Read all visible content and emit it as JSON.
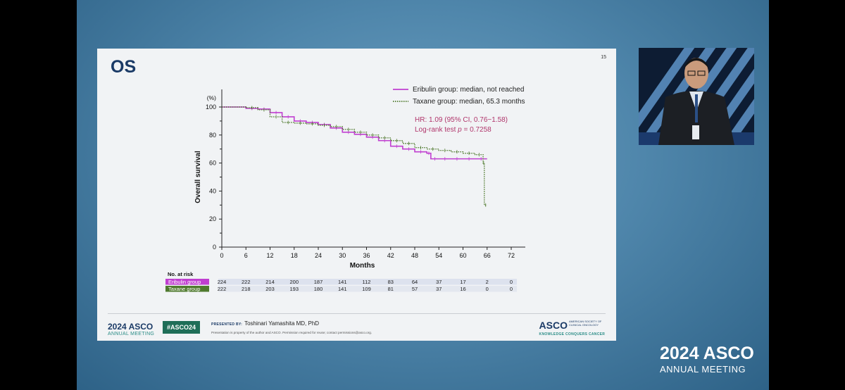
{
  "slide": {
    "number": "15",
    "title": "OS"
  },
  "chart_data": {
    "type": "line",
    "title": "OS",
    "ylabel": "Overall survival",
    "y_unit": "(%)",
    "xlabel": "Months",
    "xlim": [
      0,
      72
    ],
    "ylim": [
      0,
      100
    ],
    "x_ticks": [
      0,
      6,
      12,
      18,
      24,
      30,
      36,
      42,
      48,
      54,
      60,
      66,
      72
    ],
    "y_ticks": [
      0,
      20,
      40,
      60,
      80,
      100
    ],
    "series": [
      {
        "name": "Eribulin group: median, not reached",
        "color": "#c03fd0",
        "style": "solid",
        "x": [
          0,
          6,
          9,
          12,
          15,
          18,
          21,
          24,
          27,
          30,
          33,
          36,
          39,
          42,
          45,
          48,
          51,
          52,
          54,
          57,
          60,
          63,
          66
        ],
        "y": [
          100,
          99,
          98.5,
          96,
          93,
          90,
          89,
          87.5,
          85,
          82,
          80.5,
          78.5,
          76,
          72,
          70,
          68,
          67,
          63,
          63,
          63,
          63,
          63,
          63
        ]
      },
      {
        "name": "Taxane group: median, 65.3 months",
        "color": "#4f7a2e",
        "style": "dotted",
        "x": [
          0,
          6,
          9,
          12,
          15,
          18,
          21,
          24,
          27,
          30,
          33,
          36,
          39,
          42,
          45,
          48,
          51,
          54,
          57,
          60,
          63,
          65,
          65.3,
          66
        ],
        "y": [
          100,
          99.5,
          98,
          93,
          89,
          88.5,
          88,
          87,
          86,
          84,
          82,
          80,
          78,
          76,
          74,
          71,
          70,
          69,
          68,
          67,
          66,
          60,
          30,
          30
        ]
      }
    ],
    "annotations": {
      "hr": "HR: 1.09 (95% CI, 0.76−1.58)",
      "logrank_prefix": "Log-rank test ",
      "logrank_p": "p",
      "logrank_suffix": " = 0.7258"
    },
    "risk_table": {
      "header": "No. at risk",
      "rows": [
        {
          "group": "Eribulin group",
          "values": [
            "224",
            "222",
            "214",
            "200",
            "187",
            "141",
            "112",
            "83",
            "64",
            "37",
            "17",
            "2",
            "0"
          ]
        },
        {
          "group": "Taxane group",
          "values": [
            "222",
            "218",
            "203",
            "193",
            "180",
            "141",
            "109",
            "81",
            "57",
            "37",
            "16",
            "0",
            "0"
          ]
        }
      ]
    }
  },
  "footer": {
    "asco_year": "2024 ASCO",
    "asco_meeting": "ANNUAL MEETING",
    "hashtag": "#ASCO24",
    "presented_label": "PRESENTED BY:",
    "presenter": "Toshinari Yamashita MD, PhD",
    "disclaimer": "Presentation is property of the author and ASCO. Permission required for reuse; contact permissions@asco.org.",
    "logo_main": "ASCO",
    "logo_society": "AMERICAN SOCIETY OF CLINICAL ONCOLOGY",
    "logo_tagline": "KNOWLEDGE CONQUERS CANCER"
  },
  "overlay": {
    "asco_year": "2024 ASCO",
    "asco_meeting": "ANNUAL MEETING"
  },
  "colors": {
    "eribulin_label_bg": "#c03fd0",
    "taxane_label_bg": "#4f7a2e",
    "annotation_text": "#b0356b",
    "slide_title": "#1a3a66",
    "hashtag_bg": "#1f6e58"
  }
}
